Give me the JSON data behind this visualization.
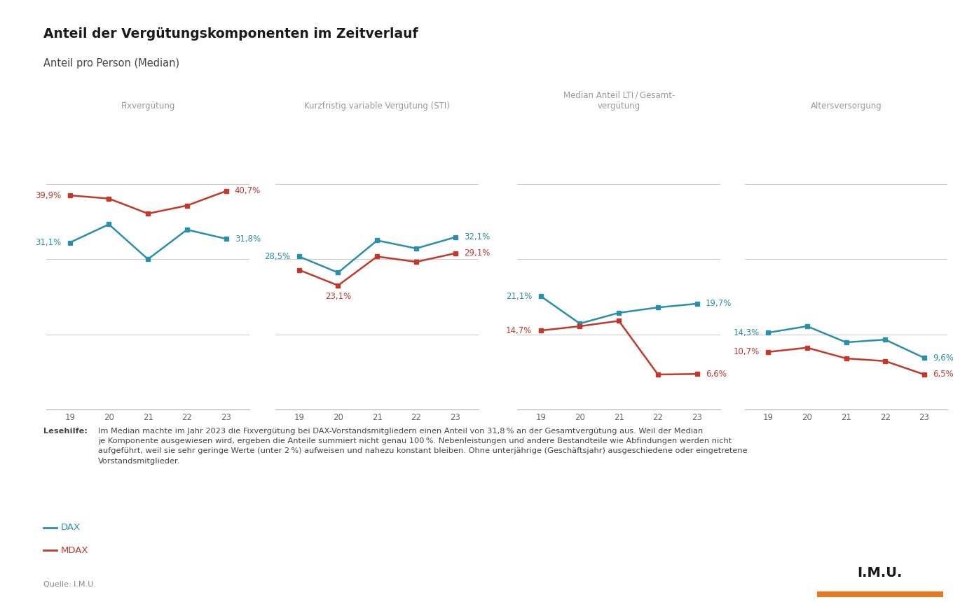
{
  "title": "Anteil der Vergütungskomponenten im Zeitverlauf",
  "subtitle": "Anteil pro Person (Median)",
  "background_color": "#ffffff",
  "top_bar_color": "#c8ccd4",
  "dax_color": "#2a8fa8",
  "mdax_color": "#c0392b",
  "years": [
    19,
    20,
    21,
    22,
    23
  ],
  "subplots": [
    {
      "title": "Fixvergütung",
      "dax": [
        31.1,
        34.5,
        28.0,
        33.5,
        31.8
      ],
      "mdax": [
        39.9,
        39.3,
        36.5,
        38.0,
        40.7
      ],
      "dax_label_first": "31,1%",
      "dax_label_last": "31,8%",
      "mdax_label_first": "39,9%",
      "mdax_label_last": "40,7%",
      "extra_labels": {}
    },
    {
      "title": "Kurzfristig variable Vergütung (STI)",
      "dax": [
        28.5,
        25.5,
        31.5,
        30.0,
        32.1
      ],
      "mdax": [
        26.0,
        23.1,
        28.5,
        27.5,
        29.1
      ],
      "dax_label_first": "28,5%",
      "dax_label_last": "32,1%",
      "mdax_label_first": null,
      "mdax_label_last": "29,1%",
      "extra_labels": {
        "mdax_20": "23,1%"
      }
    },
    {
      "title": "Median Anteil LTI / Gesamt-\nvergütung",
      "dax": [
        21.1,
        16.0,
        18.0,
        19.0,
        19.7
      ],
      "mdax": [
        14.7,
        15.5,
        16.5,
        6.5,
        6.6
      ],
      "dax_label_first": "21,1%",
      "dax_label_last": "19,7%",
      "mdax_label_first": "14,7%",
      "mdax_label_last": "6,6%",
      "extra_labels": {}
    },
    {
      "title": "Altersversorgung",
      "dax": [
        14.3,
        15.5,
        12.5,
        13.0,
        9.6
      ],
      "mdax": [
        10.7,
        11.5,
        9.5,
        9.0,
        6.5
      ],
      "dax_label_first": "14,3%",
      "dax_label_last": "9,6%",
      "mdax_label_first": "10,7%",
      "mdax_label_last": "6,5%",
      "extra_labels": {}
    }
  ],
  "footnote_bold": "Lesehilfe:",
  "footnote_text": "Im Median machte im Jahr 2023 die Fixvergütung bei DAX-Vorstandsmitgliedern einen Anteil von 31,8 % an der Gesamtvergütung aus. Weil der Median\nje Komponente ausgewiesen wird, ergeben die Anteile summiert nicht genau 100 %. Nebenleistungen und andere Bestandteile wie Abfindungen werden nicht\naufgeführt, weil sie sehr geringe Werte (unter 2 %) aufweisen und nahezu konstant bleiben. Ohne unterjährige (Geschäftsjahr) ausgeschiedene oder eingetretene\nVorstandsmitglieder.",
  "source": "Quelle: I.M.U.",
  "legend_dax": "DAX",
  "legend_mdax": "MDAX"
}
